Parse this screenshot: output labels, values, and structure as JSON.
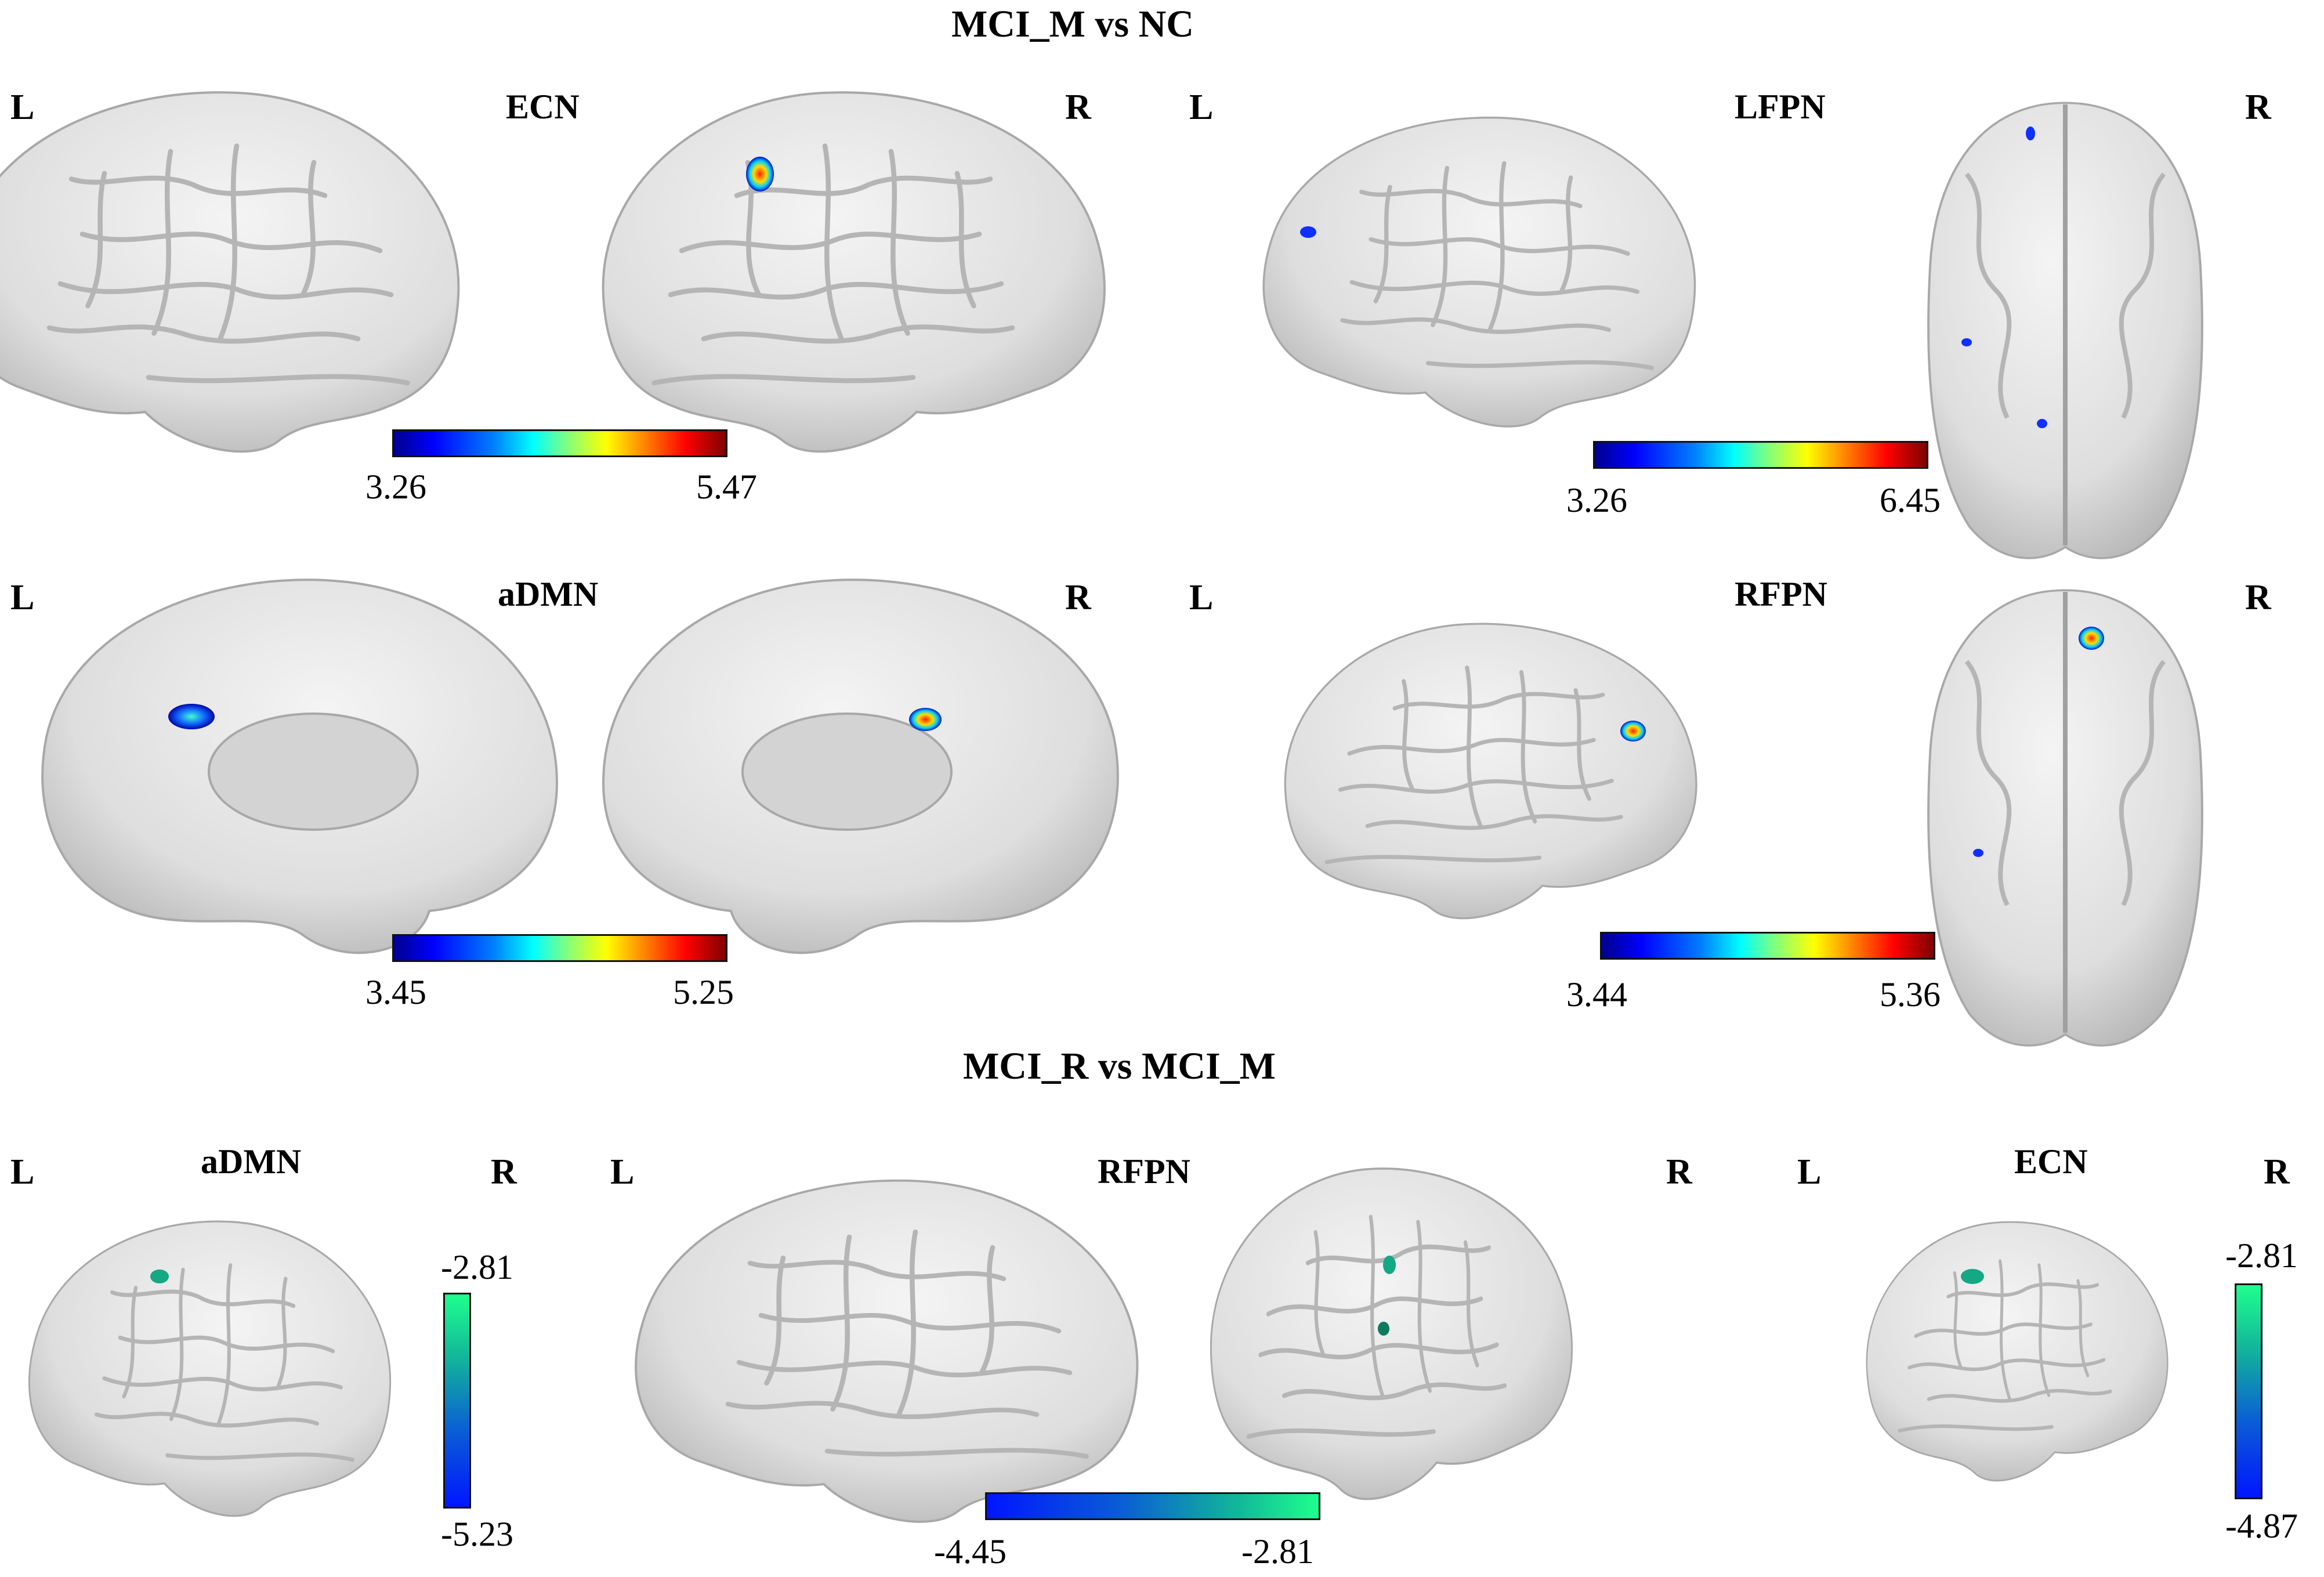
{
  "section_top": {
    "title": "MCI_M vs NC"
  },
  "section_bottom": {
    "title": "MCI_R vs MCI_M"
  },
  "hemi": {
    "left": "L",
    "right": "R"
  },
  "panels": {
    "ecn_top": {
      "name": "ECN",
      "min": "3.26",
      "max": "5.47"
    },
    "lfpn_top": {
      "name": "LFPN",
      "min": "3.26",
      "max": "6.45"
    },
    "admn_top": {
      "name": "aDMN",
      "min": "3.45",
      "max": "5.25"
    },
    "rfpn_top": {
      "name": "RFPN",
      "min": "3.44",
      "max": "5.36"
    },
    "admn_bot": {
      "name": "aDMN",
      "max": "-2.81",
      "min": "-5.23"
    },
    "rfpn_bot": {
      "name": "RFPN",
      "min": "-4.45",
      "max": "-2.81"
    },
    "ecn_bot": {
      "name": "ECN",
      "max": "-2.81",
      "min": "-4.87"
    }
  },
  "colors": {
    "brain_fill": "#e6e6e6",
    "brain_fold": "#b9b9b9",
    "medial_wall": "#d3d3d3",
    "cluster_hot": "#ff3300",
    "cluster_cold": "#1030ff",
    "cluster_neg": "#14a884"
  }
}
